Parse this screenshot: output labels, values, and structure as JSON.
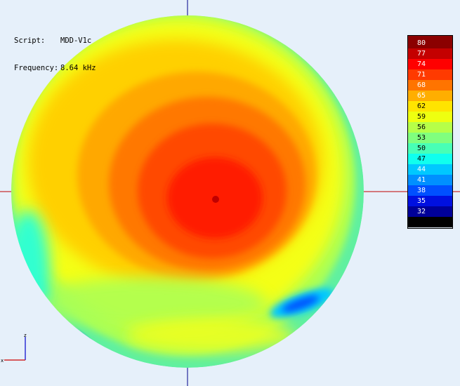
{
  "info": {
    "script_key": "Script:",
    "script_value": "MDD-V1c",
    "frequency_key": "Frequency:",
    "frequency_value": "8.64 kHz"
  },
  "axis_gizmo": {
    "z_label": "z",
    "x_label": "x"
  },
  "legend": {
    "bands": [
      {
        "label": "80",
        "color": "#8b0000",
        "text": "#ffffff"
      },
      {
        "label": "77",
        "color": "#c40000",
        "text": "#ffffff"
      },
      {
        "label": "74",
        "color": "#ff0000",
        "text": "#ffffff"
      },
      {
        "label": "71",
        "color": "#ff3a00",
        "text": "#ffffff"
      },
      {
        "label": "68",
        "color": "#ff7400",
        "text": "#ffffff"
      },
      {
        "label": "65",
        "color": "#ffae00",
        "text": "#ffffff"
      },
      {
        "label": "62",
        "color": "#ffe400",
        "text": "#000000"
      },
      {
        "label": "59",
        "color": "#eeff10",
        "text": "#000000"
      },
      {
        "label": "56",
        "color": "#b6ff48",
        "text": "#000000"
      },
      {
        "label": "53",
        "color": "#80ff7e",
        "text": "#000000"
      },
      {
        "label": "50",
        "color": "#48ffb6",
        "text": "#000000"
      },
      {
        "label": "47",
        "color": "#10ffee",
        "text": "#000000"
      },
      {
        "label": "44",
        "color": "#00c8ff",
        "text": "#ffffff"
      },
      {
        "label": "41",
        "color": "#0090ff",
        "text": "#ffffff"
      },
      {
        "label": "38",
        "color": "#0050ff",
        "text": "#ffffff"
      },
      {
        "label": "35",
        "color": "#0010e0",
        "text": "#ffffff"
      },
      {
        "label": "32",
        "color": "#000098",
        "text": "#ffffff"
      },
      {
        "label": "",
        "color": "#000000",
        "text": "#ffffff"
      }
    ]
  },
  "colors": {
    "background": "#e6f0fa",
    "crosshair_vertical": "#00008b",
    "crosshair_horizontal": "#c00000",
    "axis_z": "#0000cc",
    "axis_x": "#cc0000"
  }
}
